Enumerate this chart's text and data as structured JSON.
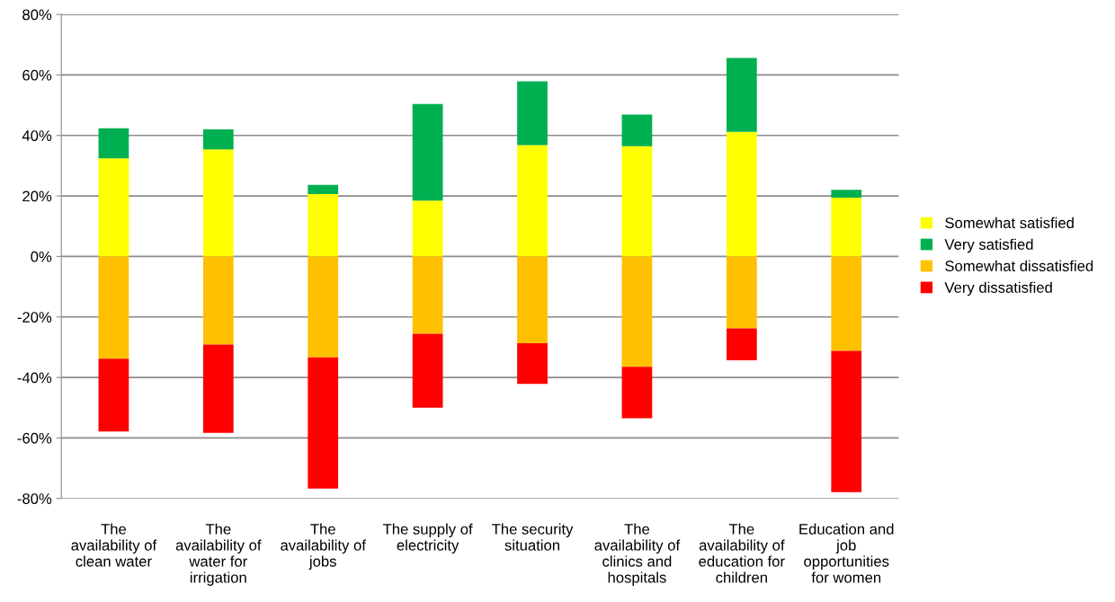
{
  "chart_data": {
    "type": "bar",
    "stacked": true,
    "categories": [
      "The availability of clean water",
      "The availability of water for irrigation",
      "The availability of jobs",
      "The supply of electricity",
      "The security situation",
      "The availability of clinics and hospitals",
      "The availability of education for children",
      "Education and job opportunities for women"
    ],
    "series": [
      {
        "name": "Somewhat satisfied",
        "color": "#ffff00",
        "values": [
          32.4,
          35.4,
          20.6,
          18.5,
          36.8,
          36.4,
          41.2,
          19.4
        ]
      },
      {
        "name": "Very satisfied",
        "color": "#00b050",
        "values": [
          10.0,
          6.6,
          3.1,
          31.9,
          21.1,
          10.5,
          24.4,
          2.6
        ]
      },
      {
        "name": "Somewhat dissatisfied",
        "color": "#ffc000",
        "values": [
          -33.8,
          -29.1,
          -33.4,
          -25.6,
          -28.7,
          -36.5,
          -23.8,
          -31.2
        ]
      },
      {
        "name": "Very dissatisfied",
        "color": "#ff0000",
        "values": [
          -24.1,
          -29.2,
          -43.3,
          -24.4,
          -13.4,
          -17.0,
          -10.5,
          -46.7
        ]
      }
    ],
    "ylim": [
      -80,
      80
    ],
    "yticks": [
      {
        "value": -80,
        "label": "-80%"
      },
      {
        "value": -60,
        "label": "-60%"
      },
      {
        "value": -40,
        "label": "-40%"
      },
      {
        "value": -20,
        "label": "-20%"
      },
      {
        "value": 0,
        "label": "0%"
      },
      {
        "value": 20,
        "label": "20%"
      },
      {
        "value": 40,
        "label": "40%"
      },
      {
        "value": 60,
        "label": "60%"
      },
      {
        "value": 80,
        "label": "80%"
      }
    ],
    "grid": "y",
    "legend": "right"
  }
}
